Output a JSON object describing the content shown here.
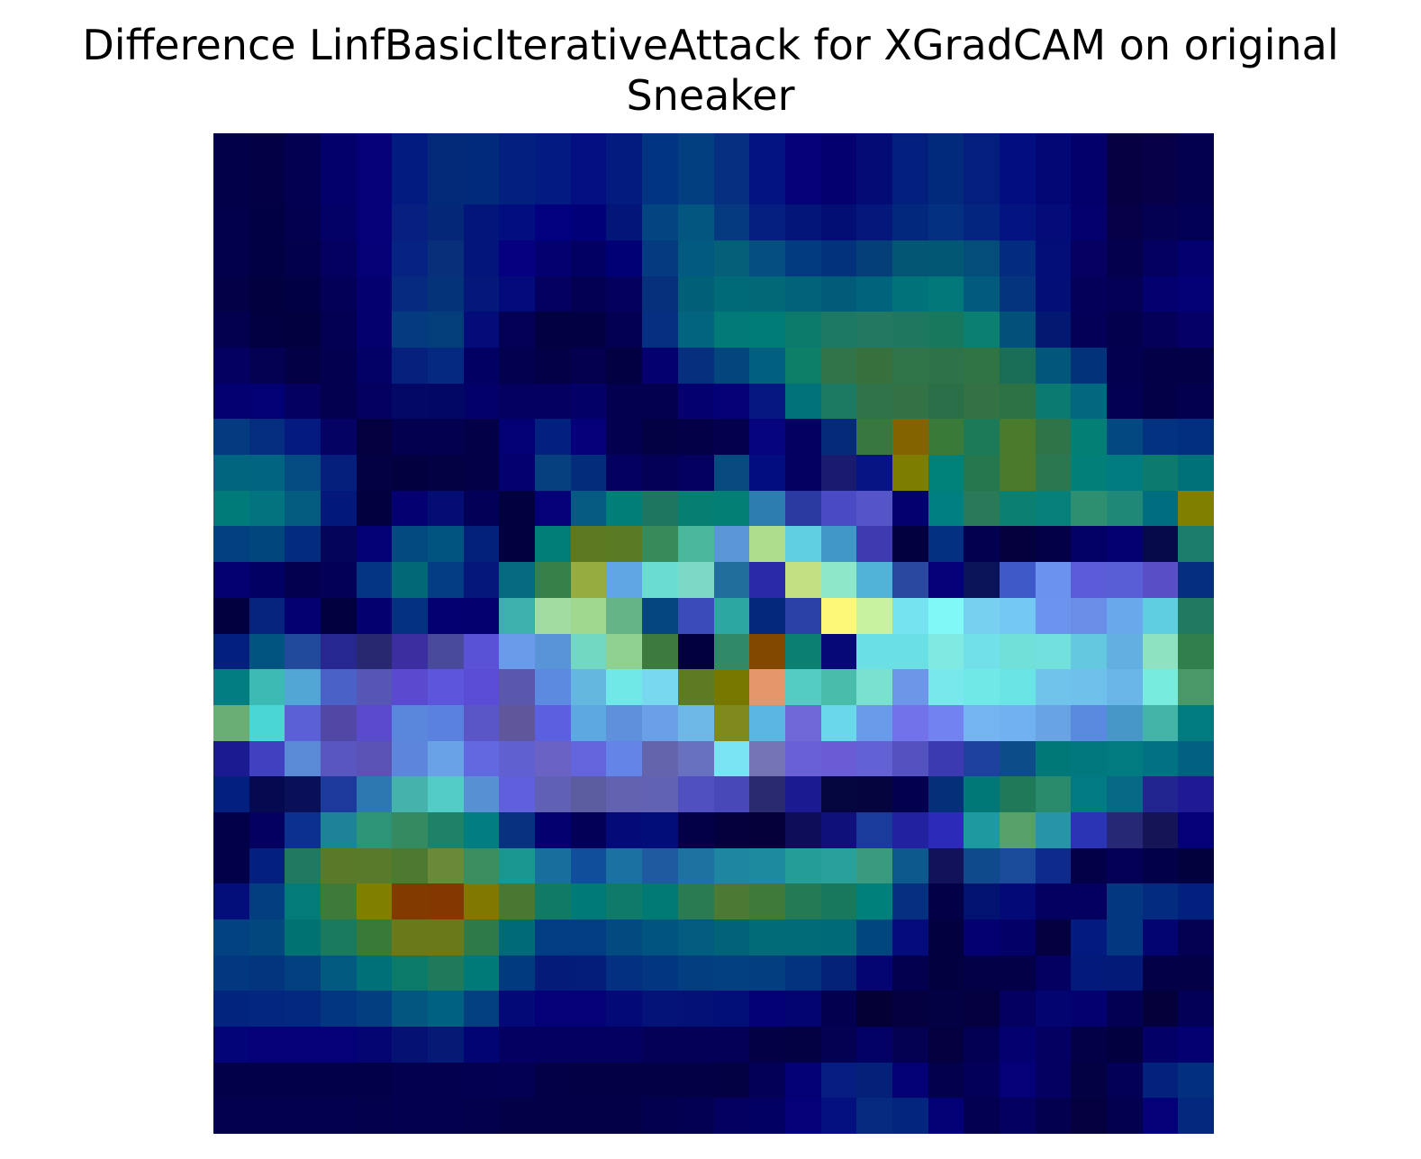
{
  "chart_data": {
    "type": "heatmap",
    "title_lines": [
      "Difference LinfBasicIterativeAttack for XGradCAM on original",
      "Sneaker"
    ],
    "rows": 28,
    "cols": 28,
    "cells": [
      [
        "#03004a",
        "#030046",
        "#030052",
        "#03006a",
        "#050078",
        "#021b80",
        "#032a78",
        "#022a7a",
        "#022080",
        "#031a82",
        "#030f80",
        "#031a7e",
        "#023581",
        "#013f80",
        "#052f80",
        "#021480",
        "#030078",
        "#040070",
        "#030c74",
        "#031f7d",
        "#022a7a",
        "#031e7c",
        "#020e80",
        "#030776",
        "#04006a",
        "#050044",
        "#050048",
        "#03004f"
      ],
      [
        "#03004a",
        "#030046",
        "#030052",
        "#03006a",
        "#050078",
        "#021b80",
        "#032a78",
        "#022a7a",
        "#022080",
        "#031a82",
        "#030f80",
        "#031a7e",
        "#023581",
        "#013f80",
        "#052f80",
        "#021480",
        "#030078",
        "#040070",
        "#030c74",
        "#031f7d",
        "#022a7a",
        "#031e7c",
        "#020e80",
        "#030776",
        "#04006a",
        "#050044",
        "#050048",
        "#03004f"
      ],
      [
        "#02004a",
        "#020045",
        "#02004f",
        "#030066",
        "#040078",
        "#061f80",
        "#052778",
        "#03157a",
        "#020d80",
        "#030080",
        "#020078",
        "#021578",
        "#034580",
        "#035680",
        "#063a80",
        "#051f80",
        "#031678",
        "#030e75",
        "#03187a",
        "#02287d",
        "#033081",
        "#032580",
        "#031480",
        "#030c78",
        "#04006e",
        "#050048",
        "#040052",
        "#020054"
      ],
      [
        "#02004a",
        "#020044",
        "#02004b",
        "#030060",
        "#040076",
        "#052380",
        "#072f7a",
        "#03157a",
        "#050080",
        "#030070",
        "#020062",
        "#020075",
        "#043a80",
        "#035a80",
        "#045f79",
        "#044f80",
        "#033b80",
        "#03327d",
        "#043f7a",
        "#035674",
        "#025874",
        "#044d7a",
        "#012c80",
        "#030e78",
        "#050062",
        "#05004e",
        "#040060",
        "#030070"
      ],
      [
        "#030048",
        "#030040",
        "#020044",
        "#030058",
        "#040070",
        "#062a80",
        "#05337a",
        "#04187a",
        "#030a7a",
        "#030060",
        "#030054",
        "#04005e",
        "#06307c",
        "#025f78",
        "#016a78",
        "#016877",
        "#01627a",
        "#025c79",
        "#01637c",
        "#00727a",
        "#03787a",
        "#025a7d",
        "#03347d",
        "#030e76",
        "#04005a",
        "#040055",
        "#030070",
        "#030076"
      ],
      [
        "#030050",
        "#030042",
        "#030040",
        "#030054",
        "#04006e",
        "#043b80",
        "#043e7a",
        "#040c7a",
        "#030055",
        "#020040",
        "#020042",
        "#030054",
        "#053082",
        "#036480",
        "#017a78",
        "#007c78",
        "#0b7a6a",
        "#1d7864",
        "#227861",
        "#1e7860",
        "#17785e",
        "#0b7f70",
        "#02517a",
        "#031870",
        "#040058",
        "#03004e",
        "#04005a",
        "#040068"
      ],
      [
        "#030062",
        "#040052",
        "#040046",
        "#040050",
        "#030066",
        "#06207e",
        "#052880",
        "#030064",
        "#040050",
        "#040048",
        "#04004f",
        "#030042",
        "#050070",
        "#06307e",
        "#03467e",
        "#015f80",
        "#0c7f66",
        "#31744a",
        "#38703d",
        "#30744a",
        "#2d7248",
        "#317443",
        "#1a6e57",
        "#02567a",
        "#02337a",
        "#030050",
        "#030048",
        "#030048"
      ],
      [
        "#030072",
        "#030074",
        "#040060",
        "#040050",
        "#030060",
        "#030866",
        "#020766",
        "#04006a",
        "#040060",
        "#030060",
        "#030068",
        "#030050",
        "#040050",
        "#040070",
        "#040076",
        "#051882",
        "#007278",
        "#1c7a62",
        "#30734a",
        "#337245",
        "#2a6f48",
        "#357243",
        "#2c7244",
        "#0b7b71",
        "#026880",
        "#030054",
        "#030048",
        "#030050"
      ],
      [
        "#033a80",
        "#042d80",
        "#051a80",
        "#040262",
        "#040040",
        "#040050",
        "#040050",
        "#040048",
        "#020072",
        "#02207e",
        "#03007a",
        "#030050",
        "#030044",
        "#030048",
        "#04004e",
        "#070480",
        "#040062",
        "#062a7a",
        "#36783d",
        "#836200",
        "#3a7a38",
        "#1c7a58",
        "#4a7a2c",
        "#2f7448",
        "#047f75",
        "#034880",
        "#033380",
        "#022e80"
      ],
      [
        "#026580",
        "#016582",
        "#034b80",
        "#05207c",
        "#030044",
        "#030040",
        "#030044",
        "#030048",
        "#030070",
        "#06407e",
        "#032c7a",
        "#040060",
        "#030055",
        "#030060",
        "#064a80",
        "#020e80",
        "#040060",
        "#1a1a6e",
        "#061582",
        "#7d7d00",
        "#008178",
        "#25784e",
        "#4b7a2c",
        "#2b7750",
        "#008079",
        "#007c80",
        "#0c7b6e",
        "#007178"
      ],
      [
        "#017a7a",
        "#027480",
        "#035b80",
        "#03197a",
        "#030040",
        "#040072",
        "#040e72",
        "#030058",
        "#030040",
        "#030078",
        "#045a80",
        "#007f78",
        "#1e7660",
        "#067f72",
        "#037f76",
        "#2e7db0",
        "#2a3aa0",
        "#4a4ac4",
        "#5555c8",
        "#030070",
        "#007f80",
        "#2a7a5a",
        "#0b7f70",
        "#08807a",
        "#2e8e70",
        "#208877",
        "#016e80",
        "#807f00"
      ],
      [
        "#034080",
        "#02467e",
        "#022c80",
        "#030558",
        "#030076",
        "#024a80",
        "#025480",
        "#03207a",
        "#030040",
        "#007e78",
        "#5c7a22",
        "#5a7a24",
        "#378b5a",
        "#4ab89c",
        "#5a96d8",
        "#aede8c",
        "#5ed0e0",
        "#4198c8",
        "#3e3ab0",
        "#030040",
        "#033080",
        "#030050",
        "#04003e",
        "#030048",
        "#030066",
        "#030072",
        "#060a48",
        "#1a7e6a"
      ],
      [
        "#030072",
        "#030064",
        "#030050",
        "#030058",
        "#033582",
        "#016878",
        "#033c82",
        "#05187a",
        "#046a80",
        "#36804a",
        "#96ac40",
        "#60a6e2",
        "#6adcd2",
        "#7ed8c6",
        "#216e9c",
        "#2a2aa6",
        "#c2e080",
        "#8ce8c8",
        "#50b4d8",
        "#2a48a0",
        "#030078",
        "#0a1258",
        "#3e5ac8",
        "#6a92ee",
        "#5c5cd8",
        "#5a5ed6",
        "#5a4ec6",
        "#062e80"
      ],
      [
        "#030040",
        "#05247e",
        "#030072",
        "#030040",
        "#030070",
        "#053280",
        "#030072",
        "#040070",
        "#3bb0ac",
        "#a2dca0",
        "#a0d890",
        "#64b488",
        "#064680",
        "#3a4cb8",
        "#2ca8a0",
        "#03287c",
        "#2a40a6",
        "#fcf878",
        "#c8f2a0",
        "#76e4f0",
        "#80f8f8",
        "#78d0f0",
        "#74c8f4",
        "#6a94ee",
        "#6a8ee8",
        "#6aa8ec",
        "#5ecfe0",
        "#207a62"
      ],
      [
        "#03207e",
        "#025480",
        "#224a9c",
        "#262890",
        "#282870",
        "#3a2ea0",
        "#4a4a9c",
        "#5a52d6",
        "#6a9aea",
        "#5a94d8",
        "#72d8c2",
        "#90d090",
        "#3c7a40",
        "#030040",
        "#308a6a",
        "#834800",
        "#0c8070",
        "#060878",
        "#6ae0e4",
        "#6ae0e4",
        "#80eae2",
        "#72e0e8",
        "#70e0d8",
        "#72e0dc",
        "#64c8e0",
        "#62b0e0",
        "#8ee2c2",
        "#31804c"
      ],
      [
        "#017e80",
        "#3cbab4",
        "#52a6d6",
        "#4a62c8",
        "#5656b4",
        "#5a4ad0",
        "#5c56dc",
        "#5a4cd4",
        "#5a58ac",
        "#5c8ae0",
        "#64b8e0",
        "#70e8e8",
        "#78d8f0",
        "#5e7a22",
        "#787800",
        "#e2966a",
        "#54ccc4",
        "#4abcac",
        "#7ae0d0",
        "#6e96e8",
        "#78e8ec",
        "#70e8e8",
        "#6ae4e4",
        "#70c4ec",
        "#70c0ec",
        "#6ab6e8",
        "#78ecdc",
        "#4a9868"
      ],
      [
        "#6aae74",
        "#4ad6d2",
        "#5a60d6",
        "#5048a4",
        "#5a4acc",
        "#5a86dc",
        "#5a80e0",
        "#5a56c8",
        "#60569c",
        "#5a60e0",
        "#5ca8e0",
        "#5e90dc",
        "#6aa0e8",
        "#6eb8e8",
        "#808a1c",
        "#5ab6e0",
        "#7068d8",
        "#6ad8e8",
        "#6a9aea",
        "#7272ea",
        "#7282ee",
        "#74b4f0",
        "#70b2f0",
        "#68a4e4",
        "#5a8ae0",
        "#4696c8",
        "#44b4a8",
        "#007c80"
      ],
      [
        "#1c1a90",
        "#4040c0",
        "#5a8ad6",
        "#5a56c0",
        "#5a52b4",
        "#5c86dc",
        "#6aa2e8",
        "#6268e0",
        "#6060d0",
        "#6a62c4",
        "#6464dc",
        "#6484e8",
        "#6464ac",
        "#6870c0",
        "#7ae4f4",
        "#7474b4",
        "#6860d4",
        "#6a5cd4",
        "#6262d4",
        "#5452c0",
        "#3c3ab0",
        "#1e409e",
        "#0c4c88",
        "#007878",
        "#00787e",
        "#017a80",
        "#007282",
        "#026080"
      ],
      [
        "#03207e",
        "#050a50",
        "#0a1058",
        "#1c3a9c",
        "#2c78b0",
        "#46b2ac",
        "#52ccc4",
        "#5890d4",
        "#6060dc",
        "#6060b4",
        "#5c5ca0",
        "#6262b0",
        "#6262b4",
        "#5050c0",
        "#4848b8",
        "#2a2a70",
        "#1c1a90",
        "#050540",
        "#05043e",
        "#030050",
        "#04307a",
        "#007878",
        "#207a5a",
        "#2a8a6c",
        "#027a84",
        "#066884",
        "#222490",
        "#1e1a96"
      ],
      [
        "#03004a",
        "#040060",
        "#0c3090",
        "#1c8496",
        "#2e9476",
        "#358a62",
        "#1e8268",
        "#007e80",
        "#063280",
        "#030070",
        "#030058",
        "#040a78",
        "#030d7a",
        "#040048",
        "#04003e",
        "#04003a",
        "#0e0e58",
        "#10107a",
        "#1a3a9c",
        "#2222a0",
        "#2c2ab8",
        "#1c9aa0",
        "#56a06a",
        "#2894a8",
        "#2a34b4",
        "#262876",
        "#141456",
        "#030078"
      ],
      [
        "#03004a",
        "#03207e",
        "#1f7a60",
        "#5a7a2a",
        "#587a2a",
        "#4d7a30",
        "#6a8a3a",
        "#3a8e60",
        "#199890",
        "#186e9c",
        "#104e9c",
        "#1a72a2",
        "#1f5aa0",
        "#1e72a2",
        "#1e86a0",
        "#1e8aa0",
        "#249c98",
        "#2aa09a",
        "#3a9a80",
        "#0d588c",
        "#12125a",
        "#0e4a8c",
        "#1a4a9a",
        "#0e2a8c",
        "#040048",
        "#040058",
        "#03004a",
        "#03003e"
      ],
      [
        "#040e7a",
        "#033e80",
        "#037b78",
        "#3e7a38",
        "#807f00",
        "#833a00",
        "#833800",
        "#807800",
        "#487832",
        "#107a64",
        "#007a78",
        "#107a6a",
        "#027a74",
        "#2a7a52",
        "#4a7a34",
        "#3f7a3a",
        "#247a54",
        "#18785c",
        "#00807a",
        "#053080",
        "#030048",
        "#021270",
        "#030a78",
        "#030060",
        "#030060",
        "#033880",
        "#032b80",
        "#02207e"
      ],
      [
        "#024280",
        "#02487e",
        "#007272",
        "#1a7a5e",
        "#3a7a38",
        "#6a7a1a",
        "#6a7a1a",
        "#2e7a48",
        "#006a78",
        "#023c82",
        "#023c82",
        "#024a80",
        "#025480",
        "#025c80",
        "#026278",
        "#016c78",
        "#016c78",
        "#016a78",
        "#024680",
        "#030c7a",
        "#030040",
        "#040072",
        "#030068",
        "#040040",
        "#031a80",
        "#033880",
        "#030472",
        "#040052"
      ],
      [
        "#023880",
        "#02357e",
        "#024080",
        "#025a80",
        "#007078",
        "#0c7a68",
        "#1e7a5a",
        "#007a78",
        "#023a80",
        "#041b7a",
        "#041c7a",
        "#033080",
        "#033680",
        "#023e80",
        "#024080",
        "#023e80",
        "#03337e",
        "#042278",
        "#040472",
        "#030050",
        "#030040",
        "#030048",
        "#030048",
        "#030062",
        "#031a7a",
        "#031a78",
        "#030048",
        "#030048"
      ],
      [
        "#02247e",
        "#032680",
        "#022880",
        "#023680",
        "#023e80",
        "#035680",
        "#006280",
        "#024080",
        "#030a78",
        "#030078",
        "#030078",
        "#030a78",
        "#041378",
        "#041278",
        "#020f78",
        "#030076",
        "#030472",
        "#040050",
        "#040036",
        "#040040",
        "#040044",
        "#040040",
        "#030060",
        "#030470",
        "#030070",
        "#030054",
        "#03003a",
        "#030058"
      ],
      [
        "#030478",
        "#030078",
        "#030078",
        "#030078",
        "#040472",
        "#051274",
        "#051a74",
        "#030474",
        "#040062",
        "#040060",
        "#040060",
        "#040060",
        "#040058",
        "#040058",
        "#040058",
        "#040046",
        "#040044",
        "#040052",
        "#030066",
        "#040052",
        "#040040",
        "#030054",
        "#030070",
        "#030062",
        "#040048",
        "#03003f",
        "#030068",
        "#030072"
      ],
      [
        "#03004a",
        "#03004a",
        "#03004a",
        "#03004a",
        "#03004a",
        "#030050",
        "#030050",
        "#030052",
        "#030054",
        "#030048",
        "#030046",
        "#030046",
        "#030046",
        "#030046",
        "#030044",
        "#030058",
        "#040074",
        "#061c80",
        "#052078",
        "#030074",
        "#03004c",
        "#03005a",
        "#030078",
        "#030060",
        "#040044",
        "#030058",
        "#03227e",
        "#03307e"
      ],
      [
        "#030050",
        "#030050",
        "#030050",
        "#030050",
        "#03004c",
        "#030050",
        "#030050",
        "#03004c",
        "#030048",
        "#030048",
        "#030048",
        "#030048",
        "#030050",
        "#030054",
        "#030060",
        "#030064",
        "#040078",
        "#04107e",
        "#062a80",
        "#04257e",
        "#030076",
        "#030052",
        "#030060",
        "#030050",
        "#040040",
        "#030050",
        "#040078",
        "#04287e"
      ]
    ]
  }
}
